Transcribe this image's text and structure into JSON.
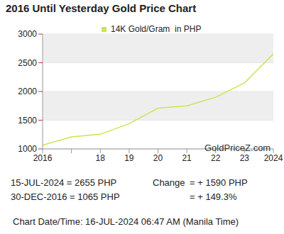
{
  "chart_data": {
    "type": "line",
    "title": "2016 Until Yesterday Gold Price Chart",
    "categories": [
      "2016",
      null,
      "18",
      "19",
      "20",
      "21",
      "22",
      "23",
      "2024"
    ],
    "series": [
      {
        "name": "14K Gold/Gram  in PHP",
        "color": "#c8e650",
        "values": [
          1065,
          1210,
          1255,
          1440,
          1710,
          1750,
          1900,
          2150,
          2655
        ]
      }
    ],
    "ylim": [
      1000,
      3000
    ],
    "yticks": [
      1000,
      1500,
      2000,
      2500,
      3000
    ],
    "grid": true,
    "legend": "top",
    "watermark": "GoldPriceZ.com",
    "footer_left": [
      "15-JUL-2024 = 2655 PHP",
      "30-DEC-2016 = 1065 PHP"
    ],
    "change_label": "Change",
    "change_values": [
      "= + 1590 PHP",
      "= + 149.3%"
    ],
    "footer": "Chart Date/Time: 16-JUL-2024 06:47 AM (Manila Time)"
  }
}
